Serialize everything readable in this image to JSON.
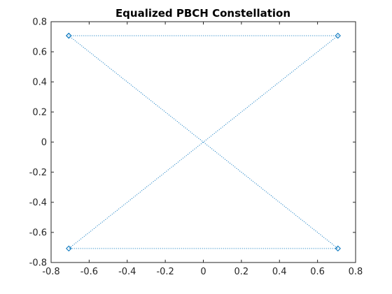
{
  "chart_data": {
    "type": "scatter",
    "title": "Equalized PBCH Constellation",
    "xlabel": "",
    "ylabel": "",
    "xlim": [
      -0.8,
      0.8
    ],
    "ylim": [
      -0.8,
      0.8
    ],
    "xticks": [
      -0.8,
      -0.6,
      -0.4,
      -0.2,
      0,
      0.2,
      0.4,
      0.6,
      0.8
    ],
    "yticks": [
      -0.8,
      -0.6,
      -0.4,
      -0.2,
      0,
      0.2,
      0.4,
      0.6,
      0.8
    ],
    "xtick_labels": [
      "-0.8",
      "-0.6",
      "-0.4",
      "-0.2",
      "0",
      "0.2",
      "0.4",
      "0.6",
      "0.8"
    ],
    "ytick_labels": [
      "-0.8",
      "-0.6",
      "-0.4",
      "-0.2",
      "0",
      "0.2",
      "0.4",
      "0.6",
      "0.8"
    ],
    "grid": false,
    "box": true,
    "series": [
      {
        "line_style": "dotted",
        "marker": "diamond",
        "color": "#0072bd",
        "x": [
          -0.707,
          0.707,
          -0.707,
          0.707,
          -0.707
        ],
        "y": [
          0.707,
          0.707,
          -0.707,
          -0.707,
          0.707
        ]
      }
    ]
  }
}
